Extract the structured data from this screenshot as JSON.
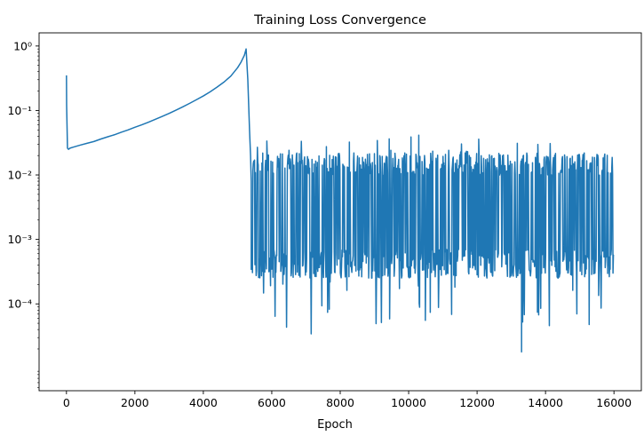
{
  "chart_data": {
    "type": "line",
    "title": "Training Loss Convergence",
    "xlabel": "Epoch",
    "ylabel": "",
    "xlim": [
      -800,
      16800
    ],
    "ylim": [
      4.5e-06,
      1.6
    ],
    "yscale": "log",
    "grid": false,
    "x_ticks": [
      0,
      2000,
      4000,
      6000,
      8000,
      10000,
      12000,
      14000,
      16000
    ],
    "x_tick_labels": [
      "0",
      "2000",
      "4000",
      "6000",
      "8000",
      "10000",
      "12000",
      "14000",
      "16000"
    ],
    "y_ticks": [
      0.0001,
      0.001,
      0.01,
      0.1,
      1
    ],
    "y_tick_labels": [
      "10⁻⁴",
      "10⁻³",
      "10⁻²",
      "10⁻¹",
      "10⁰"
    ],
    "color": "#1f77b4",
    "series": [
      {
        "name": "",
        "x": [
          0,
          5,
          30,
          60,
          100,
          200,
          400,
          600,
          800,
          1000,
          1200,
          1400,
          1600,
          1800,
          2000,
          2200,
          2400,
          2600,
          2800,
          3000,
          3200,
          3400,
          3600,
          3800,
          4000,
          4200,
          4400,
          4600,
          4800,
          5000,
          5100,
          5200,
          5250,
          5300,
          5350,
          5380,
          5400
        ],
        "y": [
          0.35,
          0.12,
          0.026,
          0.025,
          0.026,
          0.027,
          0.029,
          0.031,
          0.033,
          0.036,
          0.039,
          0.042,
          0.046,
          0.05,
          0.055,
          0.06,
          0.066,
          0.073,
          0.081,
          0.09,
          0.101,
          0.114,
          0.129,
          0.147,
          0.168,
          0.195,
          0.23,
          0.275,
          0.34,
          0.46,
          0.56,
          0.72,
          0.9,
          0.3,
          0.05,
          0.02,
          0.008
        ]
      }
    ],
    "noisy_region": {
      "x_start": 5400,
      "x_end": 16000,
      "upper_envelope_y": 0.022,
      "lower_envelope_y": 0.00025,
      "minimum_y": 1.8e-05,
      "minimum_x": 13300
    }
  }
}
